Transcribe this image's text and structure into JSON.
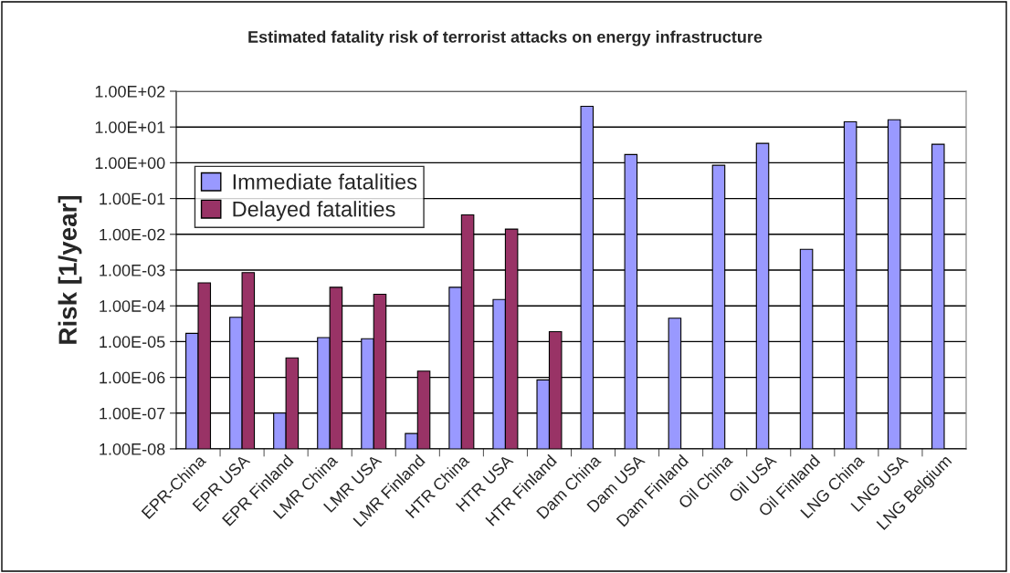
{
  "chart_data": {
    "type": "bar",
    "title": "Estimated fatality risk of terrorist attacks on energy infrastructure",
    "ylabel": "Risk [1/year]",
    "categories": [
      "EPR-China",
      "EPR USA",
      "EPR Finland",
      "LMR China",
      "LMR USA",
      "LMR Finland",
      "HTR China",
      "HTR USA",
      "HTR Finland",
      "Dam China",
      "Dam USA",
      "Dam Finland",
      "Oil China",
      "Oil USA",
      "Oil Finland",
      "LNG China",
      "LNG USA",
      "LNG Belgium"
    ],
    "series": [
      {
        "name": "Immediate fatalities",
        "color": "#9999ff",
        "values": [
          1.7e-05,
          4.8e-05,
          1e-07,
          1.3e-05,
          1.2e-05,
          2.7e-08,
          0.00033,
          0.00015,
          8.5e-07,
          38,
          1.7,
          4.5e-05,
          0.85,
          3.5,
          0.0038,
          14,
          16,
          3.3
        ]
      },
      {
        "name": "Delayed fatalities",
        "color": "#993366",
        "values": [
          0.00044,
          0.00085,
          3.5e-06,
          0.00033,
          0.00021,
          1.5e-06,
          0.035,
          0.014,
          1.9e-05,
          null,
          null,
          null,
          null,
          null,
          null,
          null,
          null,
          null
        ]
      }
    ],
    "log": "y",
    "ylim": [
      1e-08,
      100
    ],
    "yticks": [
      {
        "value": 1e-08,
        "label": "1.00E-08"
      },
      {
        "value": 1e-07,
        "label": "1.00E-07"
      },
      {
        "value": 1e-06,
        "label": "1.00E-06"
      },
      {
        "value": 1e-05,
        "label": "1.00E-05"
      },
      {
        "value": 0.0001,
        "label": "1.00E-04"
      },
      {
        "value": 0.001,
        "label": "1.00E-03"
      },
      {
        "value": 0.01,
        "label": "1.00E-02"
      },
      {
        "value": 0.1,
        "label": "1.00E-01"
      },
      {
        "value": 1,
        "label": "1.00E+00"
      },
      {
        "value": 10,
        "label": "1.00E+01"
      },
      {
        "value": 100,
        "label": "1.00E+02"
      }
    ],
    "grid": "y",
    "legend": "top left"
  }
}
